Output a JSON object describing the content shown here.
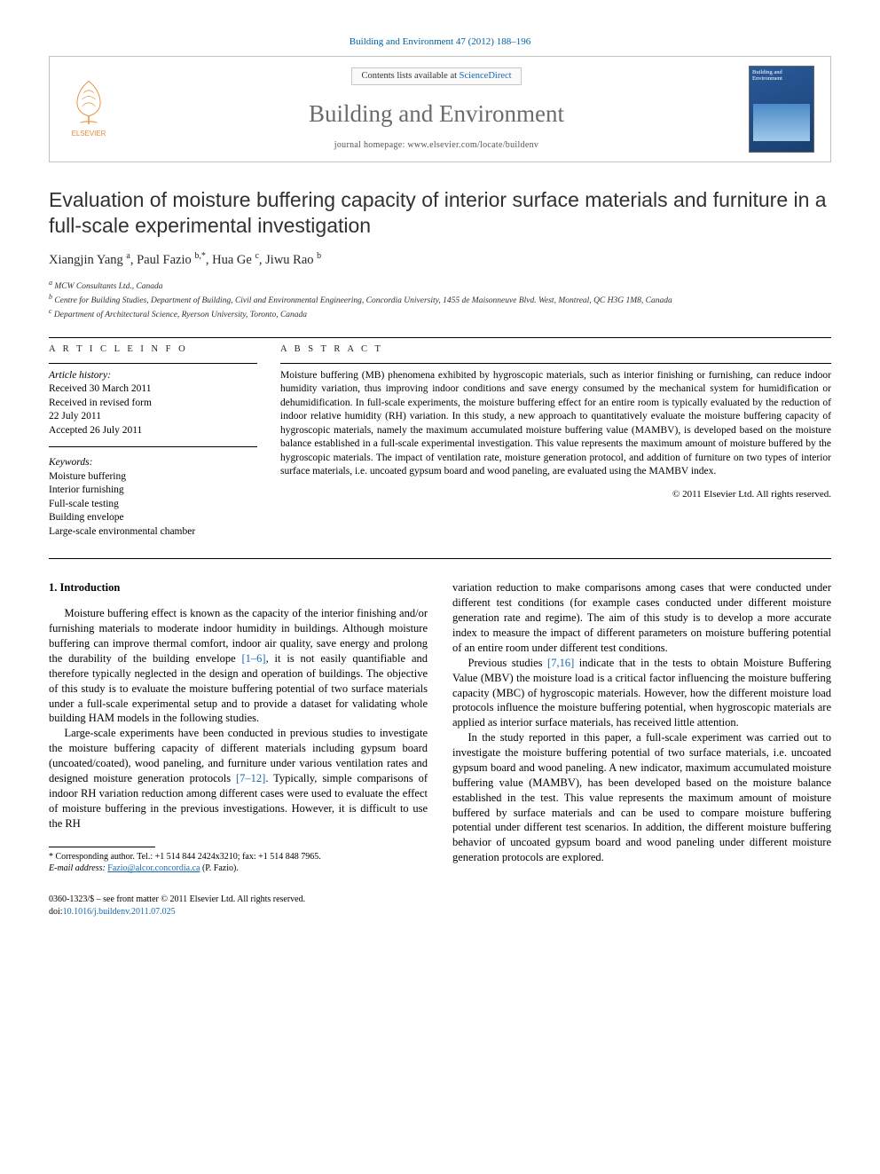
{
  "citation": "Building and Environment 47 (2012) 188–196",
  "header": {
    "publisher_name": "ELSEVIER",
    "contents_prefix": "Contents lists available at ",
    "contents_link": "ScienceDirect",
    "journal_title": "Building and Environment",
    "homepage_prefix": "journal homepage: ",
    "homepage_url": "www.elsevier.com/locate/buildenv",
    "cover_label": "Building and Environment"
  },
  "paper": {
    "title": "Evaluation of moisture buffering capacity of interior surface materials and furniture in a full-scale experimental investigation",
    "authors_html": "Xiangjin Yang <sup>a</sup>, Paul Fazio <sup>b,*</sup>, Hua Ge <sup>c</sup>, Jiwu Rao <sup>b</sup>",
    "affiliations": [
      "a MCW Consultants Ltd., Canada",
      "b Centre for Building Studies, Department of Building, Civil and Environmental Engineering, Concordia University, 1455 de Maisonneuve Blvd. West, Montreal, QC H3G 1M8, Canada",
      "c Department of Architectural Science, Ryerson University, Toronto, Canada"
    ]
  },
  "article_info": {
    "heading": "A R T I C L E   I N F O",
    "history_label": "Article history:",
    "history_lines": [
      "Received 30 March 2011",
      "Received in revised form",
      "22 July 2011",
      "Accepted 26 July 2011"
    ],
    "keywords_label": "Keywords:",
    "keywords": [
      "Moisture buffering",
      "Interior furnishing",
      "Full-scale testing",
      "Building envelope",
      "Large-scale environmental chamber"
    ]
  },
  "abstract": {
    "heading": "A B S T R A C T",
    "text": "Moisture buffering (MB) phenomena exhibited by hygroscopic materials, such as interior finishing or furnishing, can reduce indoor humidity variation, thus improving indoor conditions and save energy consumed by the mechanical system for humidification or dehumidification. In full-scale experiments, the moisture buffering effect for an entire room is typically evaluated by the reduction of indoor relative humidity (RH) variation. In this study, a new approach to quantitatively evaluate the moisture buffering capacity of hygroscopic materials, namely the maximum accumulated moisture buffering value (MAMBV), is developed based on the moisture balance established in a full-scale experimental investigation. This value represents the maximum amount of moisture buffered by the hygroscopic materials. The impact of ventilation rate, moisture generation protocol, and addition of furniture on two types of interior surface materials, i.e. uncoated gypsum board and wood paneling, are evaluated using the MAMBV index.",
    "copyright": "© 2011 Elsevier Ltd. All rights reserved."
  },
  "body": {
    "section_heading": "1. Introduction",
    "left_paragraphs": [
      "Moisture buffering effect is known as the capacity of the interior finishing and/or furnishing materials to moderate indoor humidity in buildings. Although moisture buffering can improve thermal comfort, indoor air quality, save energy and prolong the durability of the building envelope [1–6], it is not easily quantifiable and therefore typically neglected in the design and operation of buildings. The objective of this study is to evaluate the moisture buffering potential of two surface materials under a full-scale experimental setup and to provide a dataset for validating whole building HAM models in the following studies.",
      "Large-scale experiments have been conducted in previous studies to investigate the moisture buffering capacity of different materials including gypsum board (uncoated/coated), wood paneling, and furniture under various ventilation rates and designed moisture generation protocols [7–12]. Typically, simple comparisons of indoor RH variation reduction among different cases were used to evaluate the effect of moisture buffering in the previous investigations. However, it is difficult to use the RH"
    ],
    "right_paragraphs": [
      "variation reduction to make comparisons among cases that were conducted under different test conditions (for example cases conducted under different moisture generation rate and regime). The aim of this study is to develop a more accurate index to measure the impact of different parameters on moisture buffering potential of an entire room under different test conditions.",
      "Previous studies [7,16] indicate that in the tests to obtain Moisture Buffering Value (MBV) the moisture load is a critical factor influencing the moisture buffering capacity (MBC) of hygroscopic materials. However, how the different moisture load protocols influence the moisture buffering potential, when hygroscopic materials are applied as interior surface materials, has received little attention.",
      "In the study reported in this paper, a full-scale experiment was carried out to investigate the moisture buffering potential of two surface materials, i.e. uncoated gypsum board and wood paneling. A new indicator, maximum accumulated moisture buffering value (MAMBV), has been developed based on the moisture balance established in the test. This value represents the maximum amount of moisture buffered by surface materials and can be used to compare moisture buffering potential under different test scenarios. In addition, the different moisture buffering behavior of uncoated gypsum board and wood paneling under different moisture generation protocols are explored."
    ]
  },
  "footnote": {
    "corr": "* Corresponding author. Tel.: +1 514 844 2424x3210; fax: +1 514 848 7965.",
    "email_label": "E-mail address: ",
    "email": "Fazio@alcor.concordia.ca",
    "email_who": " (P. Fazio)."
  },
  "footer": {
    "issn_line": "0360-1323/$ – see front matter © 2011 Elsevier Ltd. All rights reserved.",
    "doi_label": "doi:",
    "doi": "10.1016/j.buildenv.2011.07.025"
  },
  "colors": {
    "link": "#1668b3",
    "citation": "#0061a4",
    "title_gray": "#6b6b6b"
  }
}
